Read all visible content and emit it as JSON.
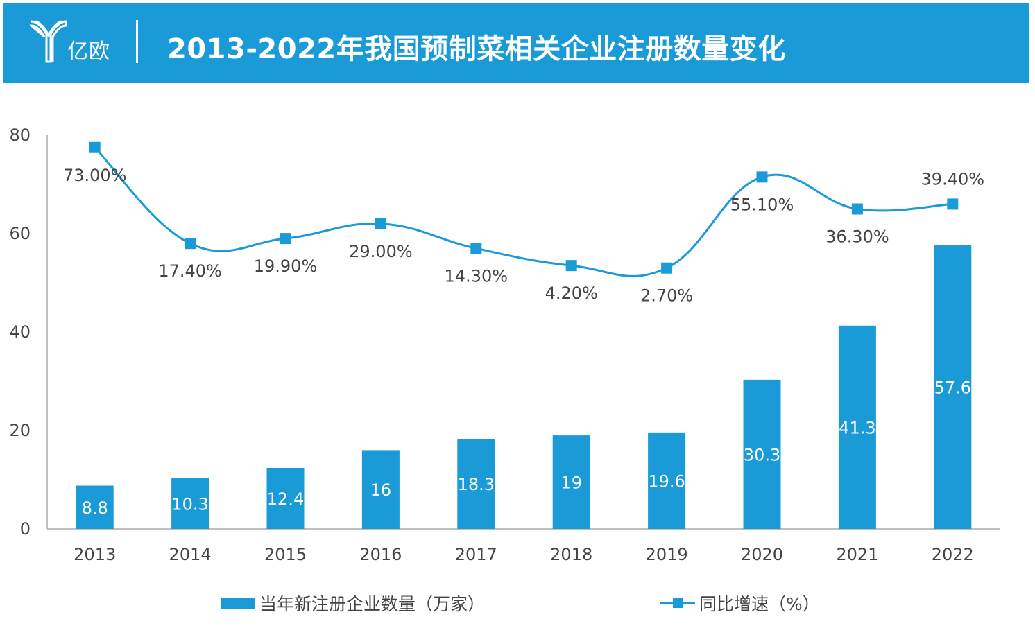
{
  "header": {
    "logo_text": "亿欧",
    "title": "2013-2022年我国预制菜相关企业注册数量变化"
  },
  "colors": {
    "accent": "#1a9bd7",
    "text": "#444444",
    "bar_label": "#ffffff"
  },
  "chart_data": {
    "type": "bar",
    "categories": [
      "2013",
      "2014",
      "2015",
      "2016",
      "2017",
      "2018",
      "2019",
      "2020",
      "2021",
      "2022"
    ],
    "ylim": [
      0,
      80
    ],
    "yticks": [
      0,
      20,
      40,
      60,
      80
    ],
    "series": [
      {
        "name": "当年新注册企业数量（万家）",
        "type": "bar",
        "values": [
          8.8,
          10.3,
          12.4,
          16,
          18.3,
          19,
          19.6,
          30.3,
          41.3,
          57.6
        ],
        "labels": [
          "8.8",
          "10.3",
          "12.4",
          "16",
          "18.3",
          "19",
          "19.6",
          "30.3",
          "41.3",
          "57.6"
        ]
      },
      {
        "name": "同比增速（%）",
        "type": "line",
        "values": [
          73.0,
          17.4,
          19.9,
          29.0,
          14.3,
          4.2,
          2.7,
          55.1,
          36.3,
          39.4
        ],
        "labels": [
          "73.00%",
          "17.40%",
          "19.90%",
          "29.00%",
          "14.30%",
          "4.20%",
          "2.70%",
          "55.10%",
          "36.30%",
          "39.40%"
        ],
        "plotted_on_left_axis": [
          77.5,
          58,
          59,
          62,
          57,
          53.5,
          53,
          71.5,
          65,
          66
        ]
      }
    ],
    "legend_position": "bottom",
    "grid": false
  }
}
